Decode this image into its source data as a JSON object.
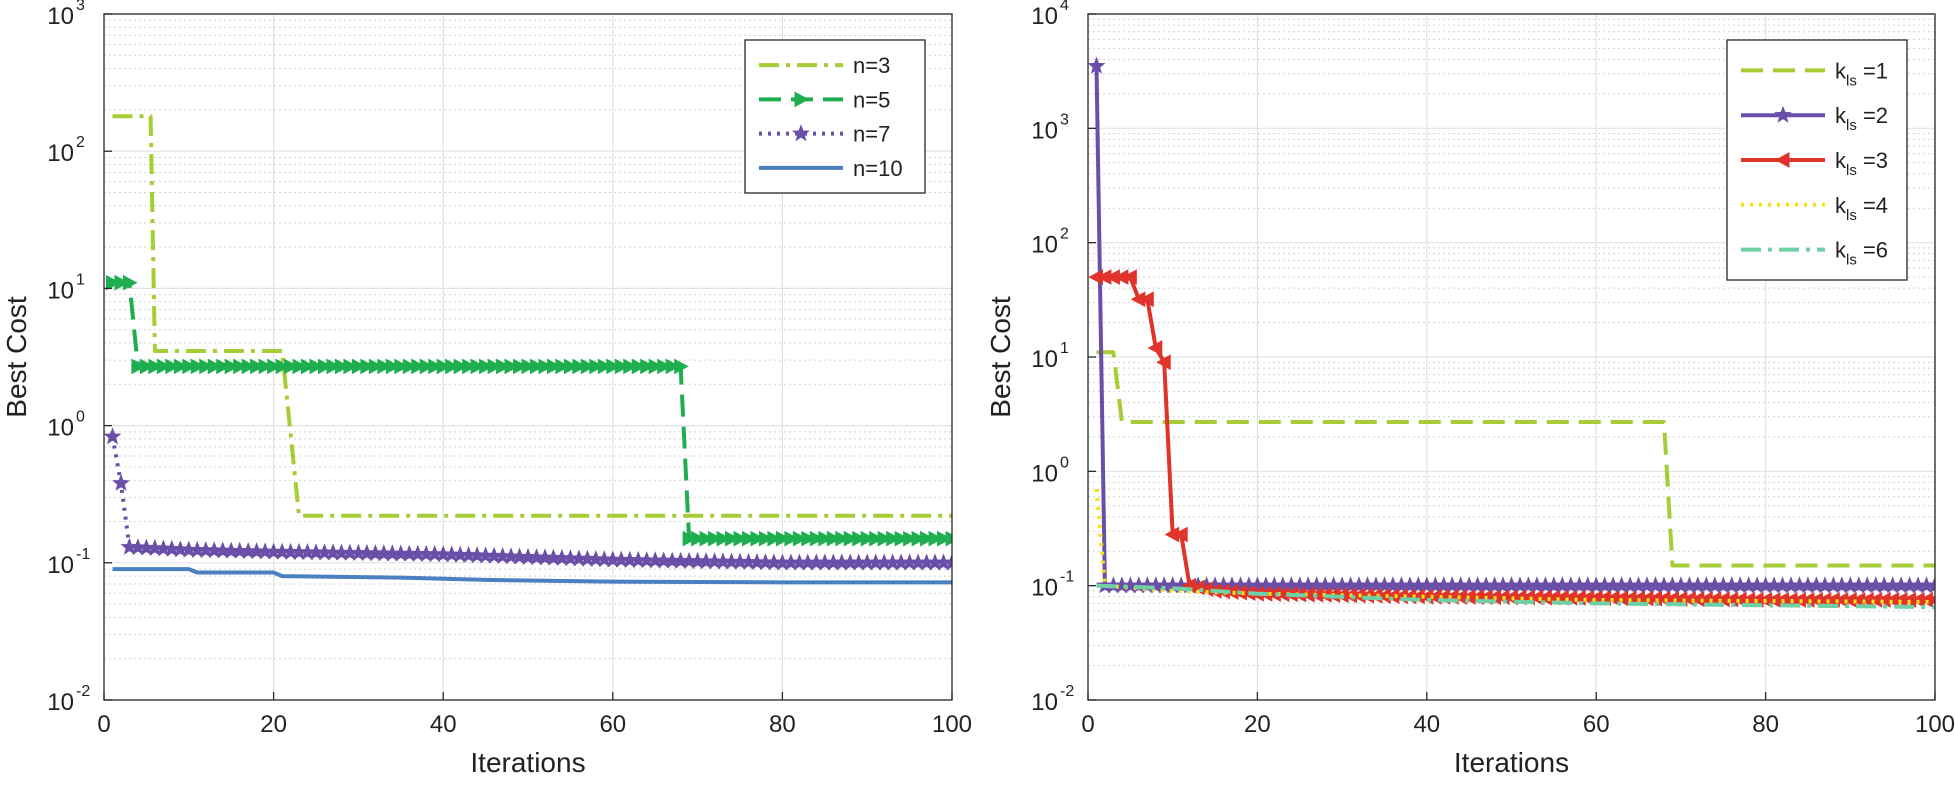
{
  "chart_data": [
    {
      "type": "line",
      "yscale": "log",
      "xlabel": "Iterations",
      "ylabel": "Best Cost",
      "xlim": [
        0,
        100
      ],
      "ylim": [
        0.01,
        1000
      ],
      "xticks": [
        0,
        20,
        40,
        60,
        80,
        100
      ],
      "ytick_base": "10",
      "ytick_exponents": [
        "-2",
        "-1",
        "0",
        "1",
        "2",
        "3"
      ],
      "grid": true,
      "legend_position": "top-right",
      "series": [
        {
          "name": "n=3",
          "color": "#a6cd36",
          "style": "dashdot",
          "marker": "none",
          "points": [
            [
              1,
              180
            ],
            [
              5.5,
              180
            ],
            [
              6,
              3.5
            ],
            [
              21,
              3.5
            ],
            [
              23,
              0.22
            ],
            [
              100,
              0.22
            ]
          ]
        },
        {
          "name": "n=5",
          "color": "#1fae4f",
          "style": "dashed",
          "marker": "triangle-right",
          "points": [
            [
              1,
              11
            ],
            [
              3,
              11
            ],
            [
              4,
              2.7
            ],
            [
              68,
              2.7
            ],
            [
              69,
              0.15
            ],
            [
              100,
              0.15
            ]
          ]
        },
        {
          "name": "n=7",
          "color": "#6a4fa8",
          "style": "dotted",
          "marker": "star",
          "points": [
            [
              1,
              0.83
            ],
            [
              2,
              0.38
            ],
            [
              3,
              0.13
            ],
            [
              10,
              0.124
            ],
            [
              20,
              0.12
            ],
            [
              40,
              0.115
            ],
            [
              60,
              0.105
            ],
            [
              80,
              0.1
            ],
            [
              100,
              0.1
            ]
          ]
        },
        {
          "name": "n=10",
          "color": "#4a7fc1",
          "style": "solid",
          "marker": "none",
          "points": [
            [
              1,
              0.09
            ],
            [
              10,
              0.09
            ],
            [
              11,
              0.085
            ],
            [
              20,
              0.085
            ],
            [
              21,
              0.08
            ],
            [
              35,
              0.078
            ],
            [
              45,
              0.075
            ],
            [
              60,
              0.073
            ],
            [
              80,
              0.072
            ],
            [
              100,
              0.072
            ]
          ]
        }
      ]
    },
    {
      "type": "line",
      "yscale": "log",
      "xlabel": "Iterations",
      "ylabel": "Best Cost",
      "xlim": [
        0,
        100
      ],
      "ylim": [
        0.01,
        10000
      ],
      "xticks": [
        0,
        20,
        40,
        60,
        80,
        100
      ],
      "ytick_base": "10",
      "ytick_exponents": [
        "-2",
        "-1",
        "0",
        "1",
        "2",
        "3",
        "4"
      ],
      "grid": true,
      "legend_position": "top-right",
      "series": [
        {
          "name": "k",
          "subscript": "ls",
          "suffix": " =1",
          "color": "#a6cd36",
          "style": "dashed",
          "marker": "none",
          "points": [
            [
              1,
              11
            ],
            [
              3,
              11
            ],
            [
              4,
              2.7
            ],
            [
              68,
              2.7
            ],
            [
              69,
              0.15
            ],
            [
              100,
              0.15
            ]
          ]
        },
        {
          "name": "k",
          "subscript": "ls",
          "suffix": " =2",
          "color": "#6a4fa8",
          "style": "solid",
          "marker": "star",
          "points": [
            [
              1,
              3500
            ],
            [
              2,
              0.1
            ],
            [
              100,
              0.1
            ]
          ]
        },
        {
          "name": "k",
          "subscript": "ls",
          "suffix": " =3",
          "color": "#e0332a",
          "style": "solid",
          "marker": "triangle-left",
          "points": [
            [
              1,
              50
            ],
            [
              5,
              50
            ],
            [
              6,
              32
            ],
            [
              7,
              32
            ],
            [
              8,
              12
            ],
            [
              9,
              9
            ],
            [
              10,
              0.28
            ],
            [
              11,
              0.28
            ],
            [
              12,
              0.1
            ],
            [
              15,
              0.09
            ],
            [
              20,
              0.085
            ],
            [
              40,
              0.08
            ],
            [
              60,
              0.078
            ],
            [
              80,
              0.075
            ],
            [
              100,
              0.075
            ]
          ]
        },
        {
          "name": "k",
          "subscript": "ls",
          "suffix": " =4",
          "color": "#f2e416",
          "style": "dotted",
          "marker": "none",
          "points": [
            [
              1,
              0.7
            ],
            [
              2,
              0.1
            ],
            [
              10,
              0.09
            ],
            [
              20,
              0.085
            ],
            [
              40,
              0.08
            ],
            [
              60,
              0.075
            ],
            [
              100,
              0.072
            ]
          ]
        },
        {
          "name": "k",
          "subscript": "ls",
          "suffix": " =6",
          "color": "#6fd0a8",
          "style": "dashdot",
          "marker": "none",
          "points": [
            [
              1,
              0.1
            ],
            [
              10,
              0.095
            ],
            [
              20,
              0.085
            ],
            [
              40,
              0.075
            ],
            [
              60,
              0.07
            ],
            [
              100,
              0.065
            ]
          ]
        }
      ]
    }
  ]
}
